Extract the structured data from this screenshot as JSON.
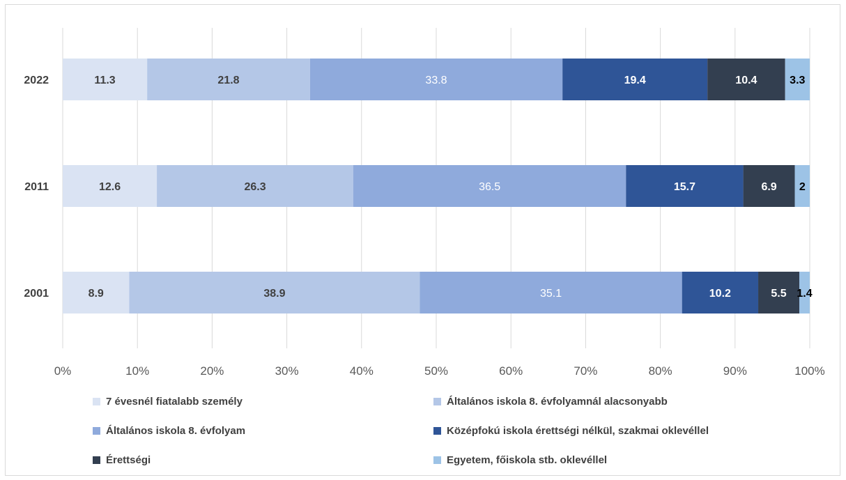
{
  "chart_data": {
    "type": "bar",
    "orientation": "horizontal",
    "stacked": "percent",
    "categories": [
      "2022",
      "2011",
      "2001"
    ],
    "series": [
      {
        "name": "7 évesnél fiatalabb személy",
        "color": "#dae3f3",
        "label_color": "#404040",
        "values": [
          11.3,
          12.6,
          8.9
        ]
      },
      {
        "name": "Általános iskola 8. évfolyamnál alacsonyabb",
        "color": "#b4c7e7",
        "label_color": "#404040",
        "values": [
          21.8,
          26.3,
          38.9
        ]
      },
      {
        "name": "Általános iskola 8. évfolyam",
        "color": "#8faadc",
        "label_color": "#ffffff",
        "label_weight": "normal",
        "values": [
          33.8,
          36.5,
          35.1
        ]
      },
      {
        "name": "Középfokú iskola érettségi nélkül, szakmai oklevéllel",
        "color": "#2f5597",
        "label_color": "#ffffff",
        "values": [
          19.4,
          15.7,
          10.2
        ]
      },
      {
        "name": "Érettségi",
        "color": "#333f50",
        "label_color": "#ffffff",
        "values": [
          10.4,
          6.9,
          5.5
        ]
      },
      {
        "name": "Egyetem, főiskola stb. oklevéllel",
        "color": "#9dc3e6",
        "label_color": "#000000",
        "values": [
          3.3,
          2,
          1.4
        ]
      }
    ],
    "xlim": [
      0,
      100
    ],
    "xticks": [
      "0%",
      "10%",
      "20%",
      "30%",
      "40%",
      "50%",
      "60%",
      "70%",
      "80%",
      "90%",
      "100%"
    ],
    "grid": true,
    "legend_position": "bottom"
  }
}
